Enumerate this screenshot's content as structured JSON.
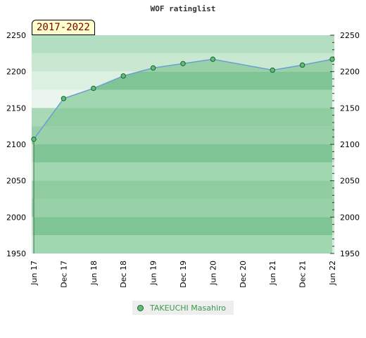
{
  "title": "WOF ratinglist",
  "period_label": "2017-2022",
  "chart_data": {
    "type": "area",
    "x": [
      "Jun 17",
      "Dec 17",
      "Jun 18",
      "Dec 18",
      "Jun 19",
      "Dec 19",
      "Jun 20",
      "Dec 20",
      "Jun 21",
      "Dec 21",
      "Jun 22"
    ],
    "series": [
      {
        "name": "TAKEUCHI Masahiro",
        "values": [
          2107,
          2163,
          2177,
          2194,
          2205,
          2211,
          2217,
          null,
          2202,
          2209,
          2217
        ]
      }
    ],
    "ylim": [
      1950,
      2250
    ],
    "yticks": [
      1950,
      2000,
      2050,
      2100,
      2150,
      2200,
      2250
    ],
    "grid": true,
    "legend_position": "bottom"
  },
  "colors": {
    "line": "#6a9fd4",
    "area": "#8fcc9f",
    "marker_fill": "#5fbf7a",
    "marker_stroke": "#1f5f2f"
  }
}
